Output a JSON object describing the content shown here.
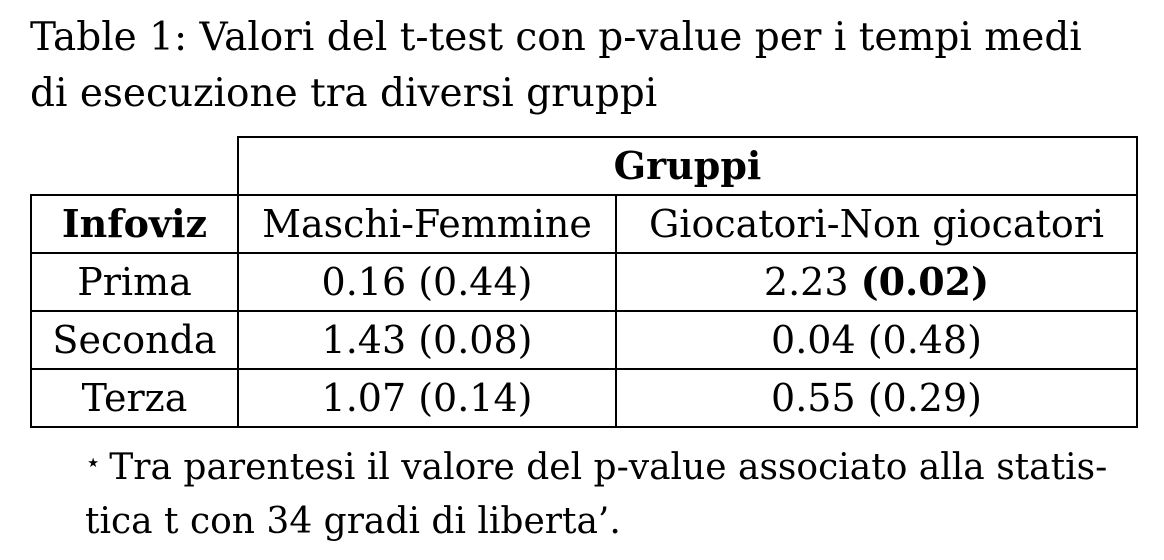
{
  "caption": {
    "line1": "Table 1:  Valori del t-test con p-value per i tempi medi",
    "line2": "di esecuzione tra diversi gruppi"
  },
  "table": {
    "group_header": "Gruppi",
    "row_header": "Infoviz",
    "columns": [
      "Maschi-Femmine",
      "Giocatori-Non giocatori"
    ],
    "rows": [
      {
        "label": "Prima",
        "c1_t": "0.16",
        "c1_p": "(0.44)",
        "c2_t": "2.23",
        "c2_p": "(0.02)"
      },
      {
        "label": "Seconda",
        "c1_t": "1.43",
        "c1_p": "(0.08)",
        "c2_t": "0.04",
        "c2_p": "(0.48)"
      },
      {
        "label": "Terza",
        "c1_t": "1.07",
        "c1_p": "(0.14)",
        "c2_t": "0.55",
        "c2_p": "(0.29)"
      }
    ]
  },
  "footnote": {
    "symbol": "⋆",
    "line1": "Tra parentesi il valore del p-value associato alla statis-",
    "line2": "tica t con 34 gradi di liberta’."
  }
}
